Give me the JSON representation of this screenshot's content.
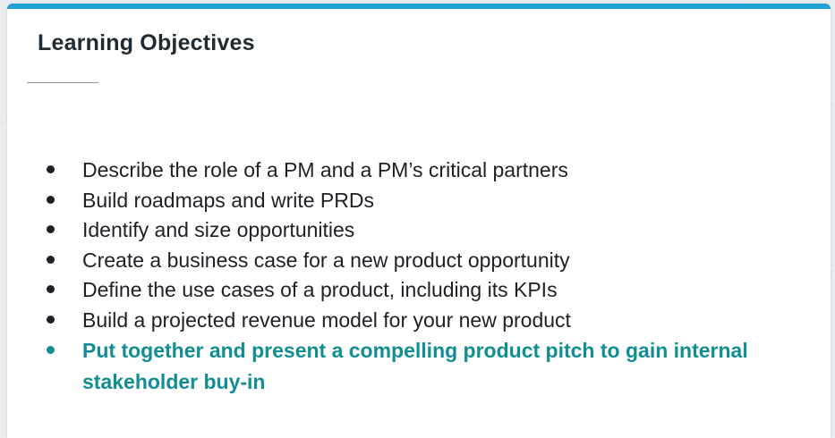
{
  "slide": {
    "title": "Learning Objectives",
    "objectives": [
      {
        "text": "Describe the role of a PM and a PM’s critical partners",
        "highlight": false
      },
      {
        "text": "Build roadmaps and write PRDs",
        "highlight": false
      },
      {
        "text": "Identify and size opportunities",
        "highlight": false
      },
      {
        "text": "Create a business case for a new product opportunity",
        "highlight": false
      },
      {
        "text": "Define the use cases of a product, including its KPIs",
        "highlight": false
      },
      {
        "text": "Build a projected revenue model for your new product",
        "highlight": false
      },
      {
        "text": "Put together and present a compelling product pitch to gain internal stakeholder buy-in",
        "highlight": true
      }
    ]
  },
  "colors": {
    "accent_bar": "#1fa3d6",
    "title_text": "#1f2a33",
    "body_text": "#1d2126",
    "highlight_text": "#108e94",
    "slide_background": "#ffffff",
    "page_background": "#e9edef"
  }
}
